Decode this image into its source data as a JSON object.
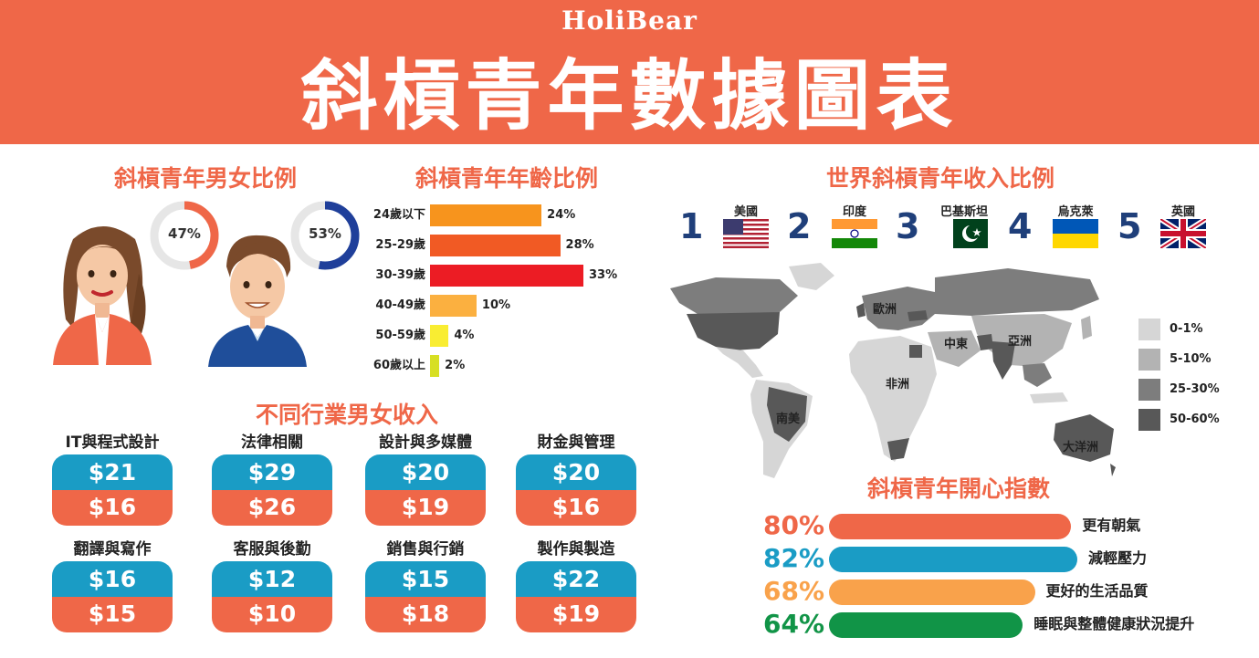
{
  "header": {
    "brand": "HoliBear",
    "title": "斜槓青年數據圖表"
  },
  "colors": {
    "accent": "#ef6748",
    "blue": "#1a9cc5",
    "navy": "#1f3f7a"
  },
  "gender": {
    "title": "斜槓青年男女比例",
    "female_pct": "47%",
    "male_pct": "53%"
  },
  "age": {
    "title": "斜槓青年年齡比例"
  },
  "industry": {
    "title": "不同行業男女收入",
    "items": [
      {
        "name": "IT與程式設計",
        "top": "$21",
        "bottom": "$16"
      },
      {
        "name": "法律相關",
        "top": "$29",
        "bottom": "$26"
      },
      {
        "name": "設計與多媒體",
        "top": "$20",
        "bottom": "$19"
      },
      {
        "name": "財金與管理",
        "top": "$20",
        "bottom": "$16"
      },
      {
        "name": "翻譯與寫作",
        "top": "$16",
        "bottom": "$15"
      },
      {
        "name": "客服與後勤",
        "top": "$12",
        "bottom": "$10"
      },
      {
        "name": "銷售與行銷",
        "top": "$15",
        "bottom": "$18"
      },
      {
        "name": "製作與製造",
        "top": "$22",
        "bottom": "$19"
      }
    ]
  },
  "world": {
    "title": "世界斜槓青年收入比例",
    "ranking": [
      {
        "rank": "1",
        "country": "美國",
        "flag": "us-flag"
      },
      {
        "rank": "2",
        "country": "印度",
        "flag": "india-flag"
      },
      {
        "rank": "3",
        "country": "巴基斯坦",
        "flag": "pakistan-flag"
      },
      {
        "rank": "4",
        "country": "烏克萊",
        "flag": "ukraine-flag"
      },
      {
        "rank": "5",
        "country": "英國",
        "flag": "uk-flag"
      }
    ],
    "regions": [
      "歐洲",
      "中東",
      "亞洲",
      "非洲",
      "南美",
      "大洋洲"
    ],
    "legend": [
      {
        "label": "0-1%",
        "color": "#d6d6d6"
      },
      {
        "label": "5-10%",
        "color": "#b3b3b3"
      },
      {
        "label": "25-30%",
        "color": "#7d7d7d"
      },
      {
        "label": "50-60%",
        "color": "#585858"
      }
    ]
  },
  "happiness": {
    "title": "斜槓青年開心指數"
  },
  "chart_data": [
    {
      "type": "pie",
      "categories": [
        "女",
        "男"
      ],
      "values": [
        47,
        53
      ],
      "title": "斜槓青年男女比例"
    },
    {
      "type": "bar",
      "title": "斜槓青年年齡比例",
      "categories": [
        "24歲以下",
        "25-29歲",
        "30-39歲",
        "40-49歲",
        "50-59歲",
        "60歲以上"
      ],
      "values": [
        24,
        28,
        33,
        10,
        4,
        2
      ],
      "labels": [
        "24%",
        "28%",
        "33%",
        "10%",
        "4%",
        "2%"
      ],
      "colors": [
        "#f7941d",
        "#f15a24",
        "#ec1c24",
        "#fbb040",
        "#f9ed32",
        "#d7df23"
      ],
      "xlim": [
        0,
        33
      ]
    },
    {
      "type": "bar",
      "title": "斜槓青年開心指數",
      "categories": [
        "更有朝氣",
        "減輕壓力",
        "更好的生活品質",
        "睡眠與整體健康狀況提升"
      ],
      "values": [
        80,
        82,
        68,
        64
      ],
      "labels": [
        "80%",
        "82%",
        "68%",
        "64%"
      ],
      "colors": [
        "#ef6748",
        "#1a9cc5",
        "#f9a24b",
        "#119447"
      ],
      "xlim": [
        0,
        82
      ]
    }
  ]
}
